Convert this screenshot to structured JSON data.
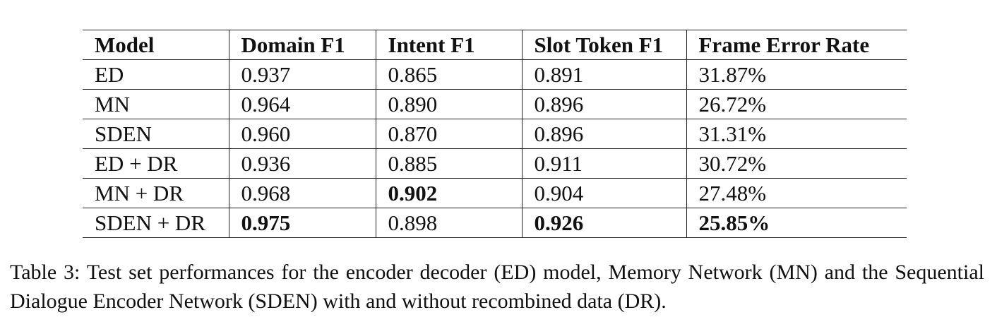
{
  "table": {
    "headers": [
      "Model",
      "Domain F1",
      "Intent F1",
      "Slot Token F1",
      "Frame Error Rate"
    ],
    "rows": [
      {
        "cells": [
          "ED",
          "0.937",
          "0.865",
          "0.891",
          "31.87%"
        ],
        "bold": [
          false,
          false,
          false,
          false,
          false
        ]
      },
      {
        "cells": [
          "MN",
          "0.964",
          "0.890",
          "0.896",
          "26.72%"
        ],
        "bold": [
          false,
          false,
          false,
          false,
          false
        ]
      },
      {
        "cells": [
          "SDEN",
          "0.960",
          "0.870",
          "0.896",
          "31.31%"
        ],
        "bold": [
          false,
          false,
          false,
          false,
          false
        ]
      },
      {
        "cells": [
          "ED + DR",
          "0.936",
          "0.885",
          "0.911",
          "30.72%"
        ],
        "bold": [
          false,
          false,
          false,
          false,
          false
        ]
      },
      {
        "cells": [
          "MN + DR",
          "0.968",
          "0.902",
          "0.904",
          "27.48%"
        ],
        "bold": [
          false,
          false,
          true,
          false,
          false
        ]
      },
      {
        "cells": [
          "SDEN + DR",
          "0.975",
          "0.898",
          "0.926",
          "25.85%"
        ],
        "bold": [
          false,
          true,
          false,
          true,
          true
        ]
      }
    ]
  },
  "caption": {
    "text": "Table 3:  Test set performances for the encoder decoder (ED) model, Memory Network (MN) and the Sequential Dialogue Encoder Network (SDEN) with and without recombined data (DR)."
  }
}
